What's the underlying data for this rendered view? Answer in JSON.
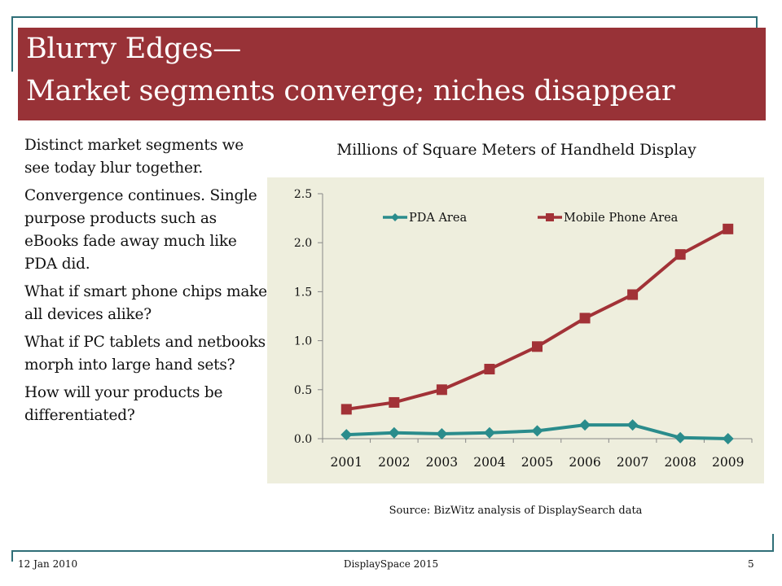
{
  "slide": {
    "title_line1": "Blurry Edges—",
    "title_line2": "Market segments converge; niches disappear",
    "bullets": [
      "Distinct market segments we see today blur together.",
      "Convergence continues. Single purpose products such as eBooks fade away much like PDA did.",
      "What if smart phone chips make all devices alike?",
      "What if PC tablets and netbooks morph into large hand sets?",
      "How will your products be differentiated?"
    ],
    "source": "Source: BizWitz analysis of DisplaySearch data",
    "footer": {
      "date": "12 Jan 2010",
      "center": "DisplaySpace 2015",
      "page": "5"
    }
  },
  "colors": {
    "title_bg": "#983237",
    "pda": "#2a8c8c",
    "mobile": "#a23237",
    "plot_bg": "#eeeedd",
    "frame": "#2f6f78"
  },
  "chart_data": {
    "type": "line",
    "title": "Millions of Square Meters of Handheld Display",
    "categories": [
      "2001",
      "2002",
      "2003",
      "2004",
      "2005",
      "2006",
      "2007",
      "2008",
      "2009"
    ],
    "series": [
      {
        "name": "PDA Area",
        "marker": "diamond",
        "values": [
          0.04,
          0.06,
          0.05,
          0.06,
          0.08,
          0.14,
          0.14,
          0.01,
          0.0
        ]
      },
      {
        "name": "Mobile Phone Area",
        "marker": "square",
        "values": [
          0.3,
          0.37,
          0.5,
          0.71,
          0.94,
          1.23,
          1.47,
          1.88,
          2.14
        ]
      }
    ],
    "ylim": [
      0,
      2.5
    ],
    "yticks": [
      "0.0",
      "0.5",
      "1.0",
      "1.5",
      "2.0",
      "2.5"
    ],
    "grid": false,
    "legend": "top"
  }
}
